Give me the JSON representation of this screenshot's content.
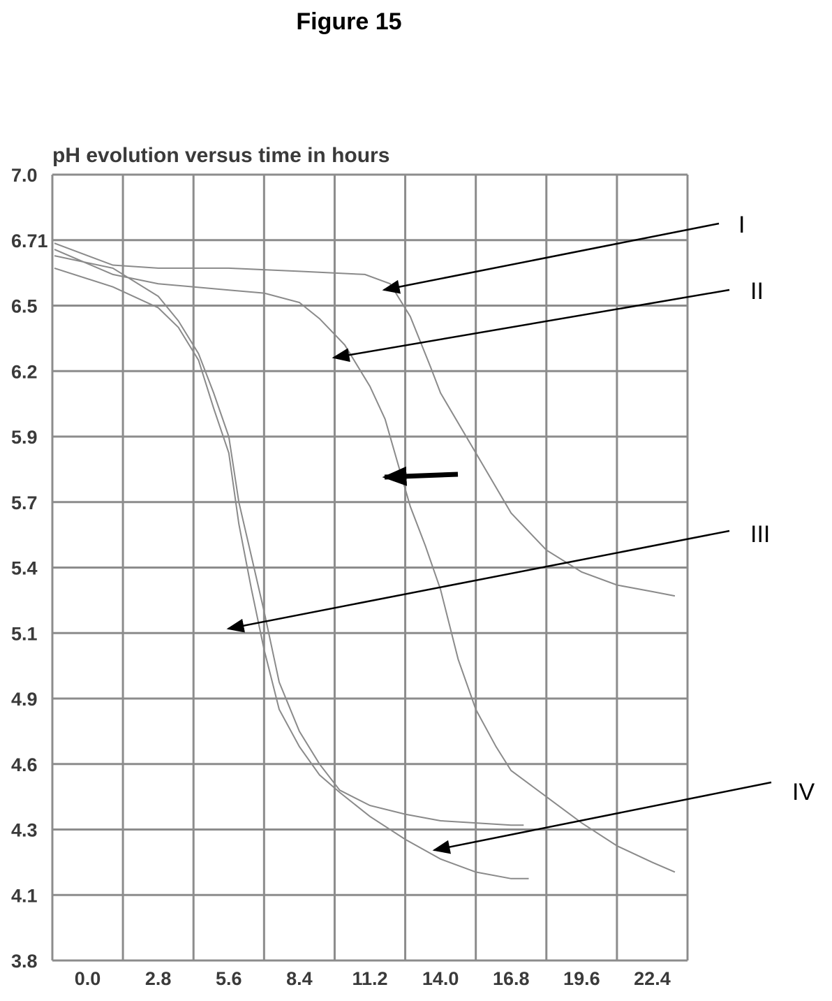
{
  "figure_label": "Figure 15",
  "chart_data": {
    "type": "line",
    "title": "pH evolution versus time in hours",
    "xlabel": "",
    "ylabel": "",
    "x_ticks": [
      "0.0",
      "2.8",
      "5.6",
      "8.4",
      "11.2",
      "14.0",
      "16.8",
      "19.6",
      "22.4"
    ],
    "y_ticks": [
      "7.0",
      "6.71",
      "6.5",
      "6.2",
      "5.9",
      "5.7",
      "5.4",
      "5.1",
      "4.9",
      "4.6",
      "4.3",
      "4.1",
      "3.8"
    ],
    "grid": true,
    "series": [
      {
        "name": "I",
        "points": [
          [
            0,
            6.7
          ],
          [
            1.0,
            6.63
          ],
          [
            2.8,
            6.62
          ],
          [
            5.6,
            6.62
          ],
          [
            8.4,
            6.61
          ],
          [
            11.0,
            6.6
          ],
          [
            12.0,
            6.57
          ],
          [
            12.8,
            6.45
          ],
          [
            13.6,
            6.22
          ],
          [
            14.0,
            6.1
          ],
          [
            15.4,
            5.85
          ],
          [
            16.8,
            5.65
          ],
          [
            18.2,
            5.48
          ],
          [
            19.6,
            5.38
          ],
          [
            21.0,
            5.32
          ],
          [
            22.4,
            5.29
          ],
          [
            23.3,
            5.27
          ]
        ]
      },
      {
        "name": "II",
        "points": [
          [
            0,
            6.68
          ],
          [
            1.0,
            6.6
          ],
          [
            2.8,
            6.57
          ],
          [
            5.6,
            6.55
          ],
          [
            7.0,
            6.54
          ],
          [
            8.4,
            6.51
          ],
          [
            9.2,
            6.44
          ],
          [
            10.2,
            6.32
          ],
          [
            11.2,
            6.13
          ],
          [
            11.8,
            5.98
          ],
          [
            12.3,
            5.82
          ],
          [
            12.8,
            5.68
          ],
          [
            13.4,
            5.5
          ],
          [
            14.0,
            5.3
          ],
          [
            14.7,
            5.02
          ],
          [
            15.4,
            4.85
          ],
          [
            16.2,
            4.68
          ],
          [
            16.8,
            4.57
          ],
          [
            18.2,
            4.45
          ],
          [
            19.6,
            4.33
          ],
          [
            21.0,
            4.25
          ],
          [
            22.4,
            4.2
          ],
          [
            23.3,
            4.17
          ]
        ]
      },
      {
        "name": "III",
        "points": [
          [
            0,
            6.66
          ],
          [
            1.0,
            6.62
          ],
          [
            2.8,
            6.53
          ],
          [
            3.6,
            6.43
          ],
          [
            4.4,
            6.28
          ],
          [
            5.0,
            6.1
          ],
          [
            5.6,
            5.9
          ],
          [
            6.0,
            5.7
          ],
          [
            6.5,
            5.45
          ],
          [
            7.0,
            5.2
          ],
          [
            7.6,
            4.95
          ],
          [
            8.4,
            4.75
          ],
          [
            9.2,
            4.6
          ],
          [
            10.0,
            4.48
          ],
          [
            11.2,
            4.41
          ],
          [
            12.6,
            4.37
          ],
          [
            14.0,
            4.34
          ],
          [
            15.4,
            4.33
          ],
          [
            16.8,
            4.32
          ],
          [
            17.3,
            4.32
          ]
        ]
      },
      {
        "name": "IV",
        "points": [
          [
            0,
            6.62
          ],
          [
            1.0,
            6.56
          ],
          [
            2.8,
            6.49
          ],
          [
            3.6,
            6.4
          ],
          [
            4.4,
            6.25
          ],
          [
            5.0,
            6.03
          ],
          [
            5.6,
            5.85
          ],
          [
            6.0,
            5.6
          ],
          [
            6.5,
            5.3
          ],
          [
            7.0,
            5.05
          ],
          [
            7.6,
            4.85
          ],
          [
            8.4,
            4.68
          ],
          [
            9.2,
            4.55
          ],
          [
            10.0,
            4.47
          ],
          [
            11.2,
            4.36
          ],
          [
            12.6,
            4.27
          ],
          [
            14.0,
            4.21
          ],
          [
            15.4,
            4.17
          ],
          [
            16.8,
            4.15
          ],
          [
            17.5,
            4.15
          ]
        ]
      }
    ]
  },
  "annotations": {
    "labels": [
      "I",
      "II",
      "III",
      "IV"
    ]
  }
}
